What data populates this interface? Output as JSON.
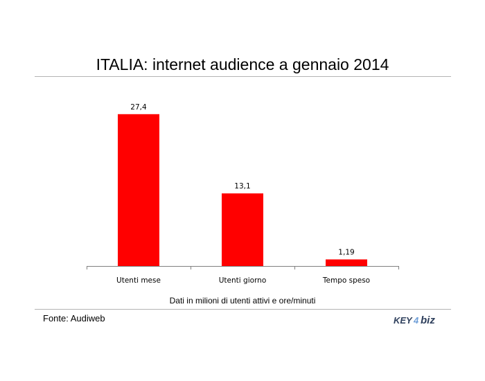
{
  "header": {
    "title": "ITALIA: internet audience a gennaio 2014"
  },
  "footer": {
    "subtitle": "Dati in milioni di utenti attivi e ore/minuti",
    "source": "Fonte: Audiweb",
    "logo": {
      "part1": "KEY",
      "part2": "4",
      "part3": "biz",
      "full": "KEY4biz"
    }
  },
  "colors": {
    "bar": "#ff0000",
    "axis": "#808080",
    "rule": "#b3b3b3",
    "logo_dark": "#2e3f5c",
    "logo_blue": "#6f9fd8"
  },
  "chart_data": {
    "type": "bar",
    "categories": [
      "Utenti mese",
      "Utenti giorno",
      "Tempo speso"
    ],
    "values": [
      27.4,
      13.1,
      1.19
    ],
    "data_labels": [
      "27,4",
      "13,1",
      "1,19"
    ],
    "title": "ITALIA: internet audience a gennaio 2014",
    "xlabel": "",
    "ylabel": "",
    "ylim": [
      0,
      28
    ],
    "grid": false,
    "legend": "none"
  }
}
